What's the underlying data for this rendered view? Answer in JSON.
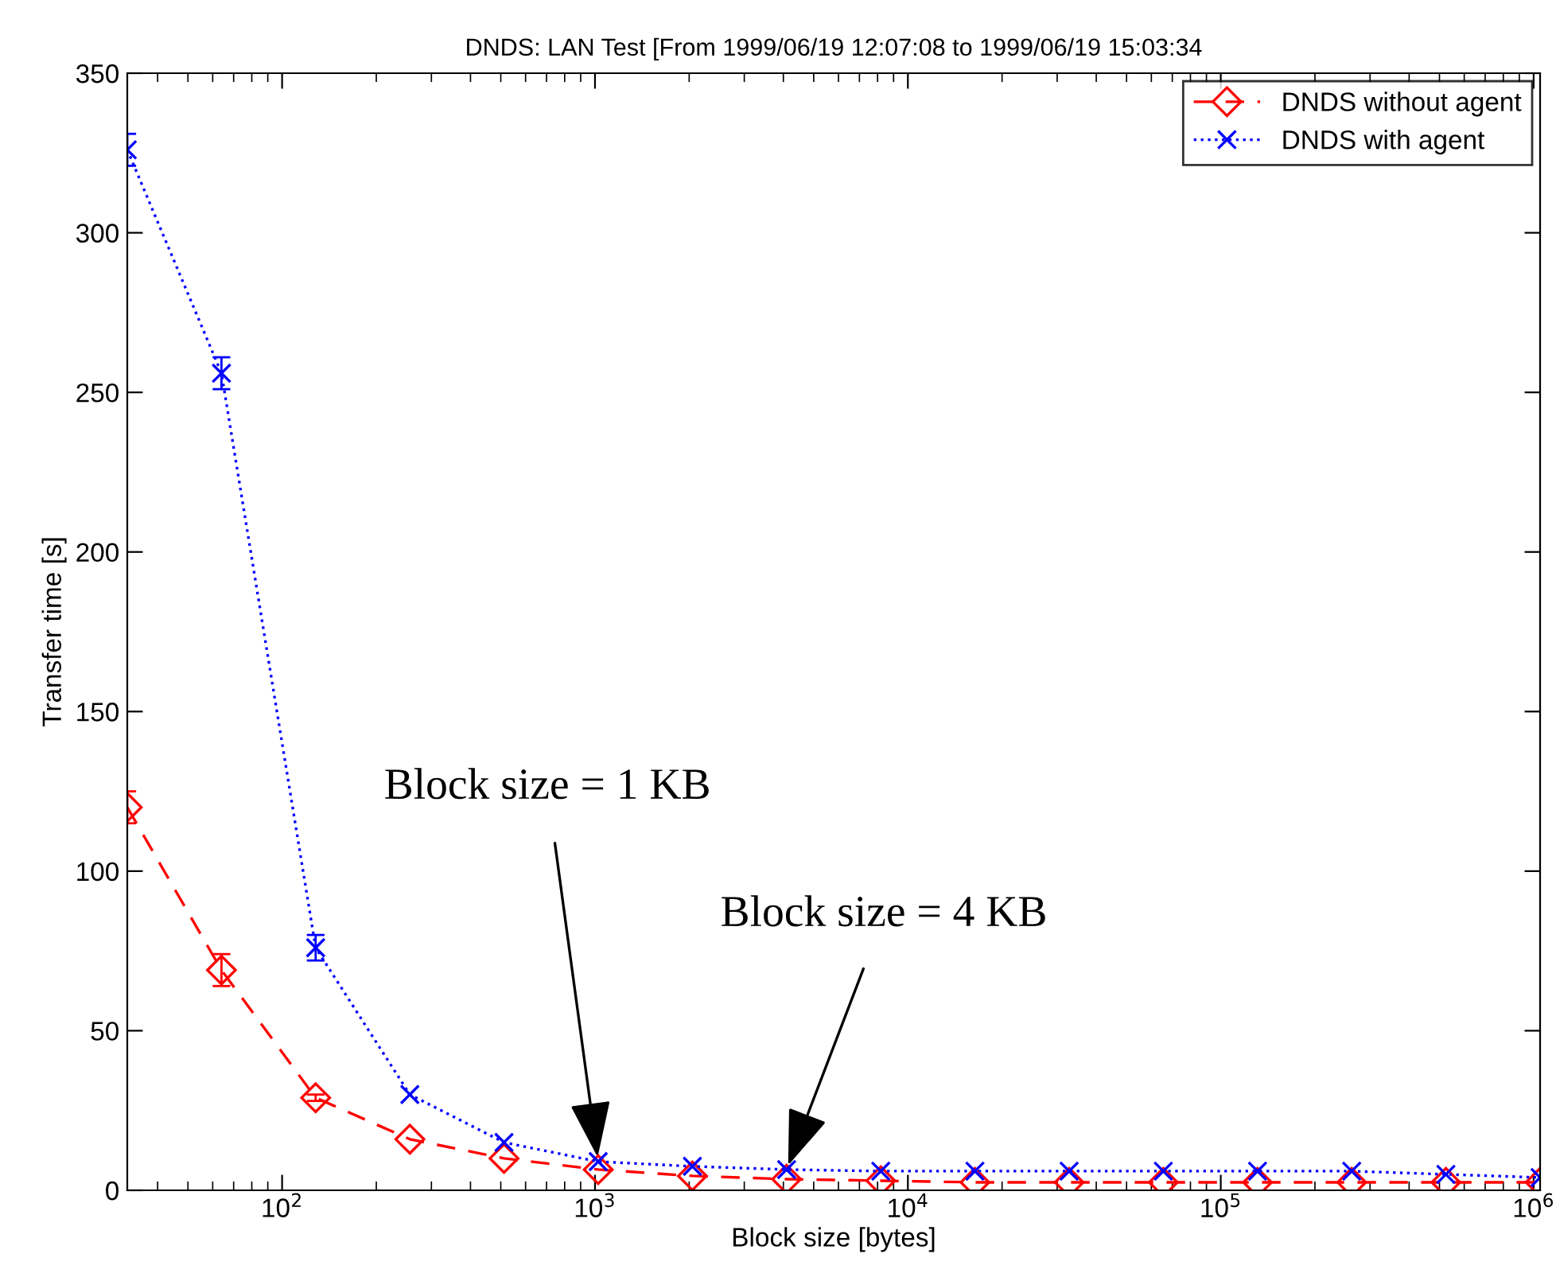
{
  "chart_data": {
    "type": "line",
    "title": "DNDS: LAN Test [From 1999/06/19 12:07:08 to 1999/06/19 15:03:34",
    "xlabel": "Block size [bytes]",
    "ylabel": "Transfer time [s]",
    "x": [
      32,
      64,
      128,
      256,
      512,
      1024,
      2048,
      4096,
      8192,
      16384,
      32768,
      65536,
      131072,
      262144,
      524288,
      1048576
    ],
    "series": [
      {
        "name": "DNDS without agent",
        "color": "#ff0000",
        "marker": "diamond",
        "line_style": "dashed",
        "values": [
          120,
          69,
          29,
          16,
          10,
          6.5,
          4.5,
          3.5,
          3,
          2.5,
          2.5,
          2.5,
          2.5,
          2.5,
          2.5,
          2.5
        ],
        "errors": [
          5,
          5,
          1,
          null,
          null,
          null,
          null,
          null,
          null,
          null,
          null,
          null,
          null,
          null,
          null,
          null
        ]
      },
      {
        "name": "DNDS with agent",
        "color": "#0000ff",
        "marker": "cross",
        "line_style": "dotted",
        "values": [
          326,
          256,
          76,
          30,
          15,
          9,
          7.5,
          6.5,
          6,
          6,
          6,
          6,
          6,
          6,
          5,
          4
        ],
        "errors": [
          5,
          5,
          4,
          null,
          null,
          null,
          null,
          null,
          null,
          null,
          null,
          null,
          null,
          null,
          null,
          null
        ]
      }
    ],
    "annotations": [
      {
        "text": "Block size = 1 KB",
        "x": 1024,
        "y": 9
      },
      {
        "text": "Block size = 4 KB",
        "x": 4096,
        "y": 6.5
      }
    ],
    "log": "x",
    "xlim": [
      32,
      1048576
    ],
    "ylim": [
      0,
      350
    ],
    "xticks": [
      {
        "value": 100,
        "label": "10$^{2}$"
      },
      {
        "value": 1000,
        "label": "10$^{3}$"
      },
      {
        "value": 10000,
        "label": "10$^{4}$"
      },
      {
        "value": 100000,
        "label": "10$^{5}$"
      },
      {
        "value": 1000000,
        "label": "10$^{6}$"
      }
    ],
    "yticks": [
      0,
      50,
      100,
      150,
      200,
      250,
      300,
      350
    ],
    "grid": false,
    "legend": "top right"
  }
}
